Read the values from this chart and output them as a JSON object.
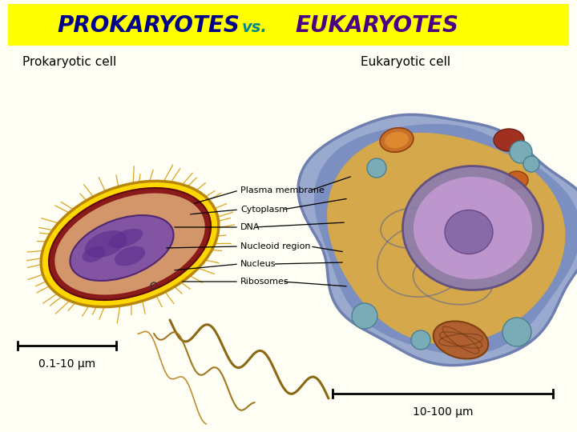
{
  "title_text_prokaryotes": "PROKARYOTES",
  "title_text_vs": "vs.",
  "title_text_eukaryotes": "EUKARYOTES",
  "title_bg_color": "#FFFF00",
  "title_prokaryotes_color": "#00008B",
  "title_vs_color": "#008B8B",
  "title_eukaryotes_color": "#4B0082",
  "bg_color": "#FFFEF5",
  "prokaryotic_label": "Prokaryotic cell",
  "eukaryotic_label": "Eukaryotic cell",
  "scale_bar_left_text": "0.1-10 μm",
  "scale_bar_right_text": "10-100 μm",
  "labels": [
    "Plasma membrane",
    "Cytoplasm",
    "DNA",
    "Nucleoid region",
    "Nucleus",
    "Ribosomes"
  ],
  "fig_width": 7.2,
  "fig_height": 5.4,
  "dpi": 100
}
